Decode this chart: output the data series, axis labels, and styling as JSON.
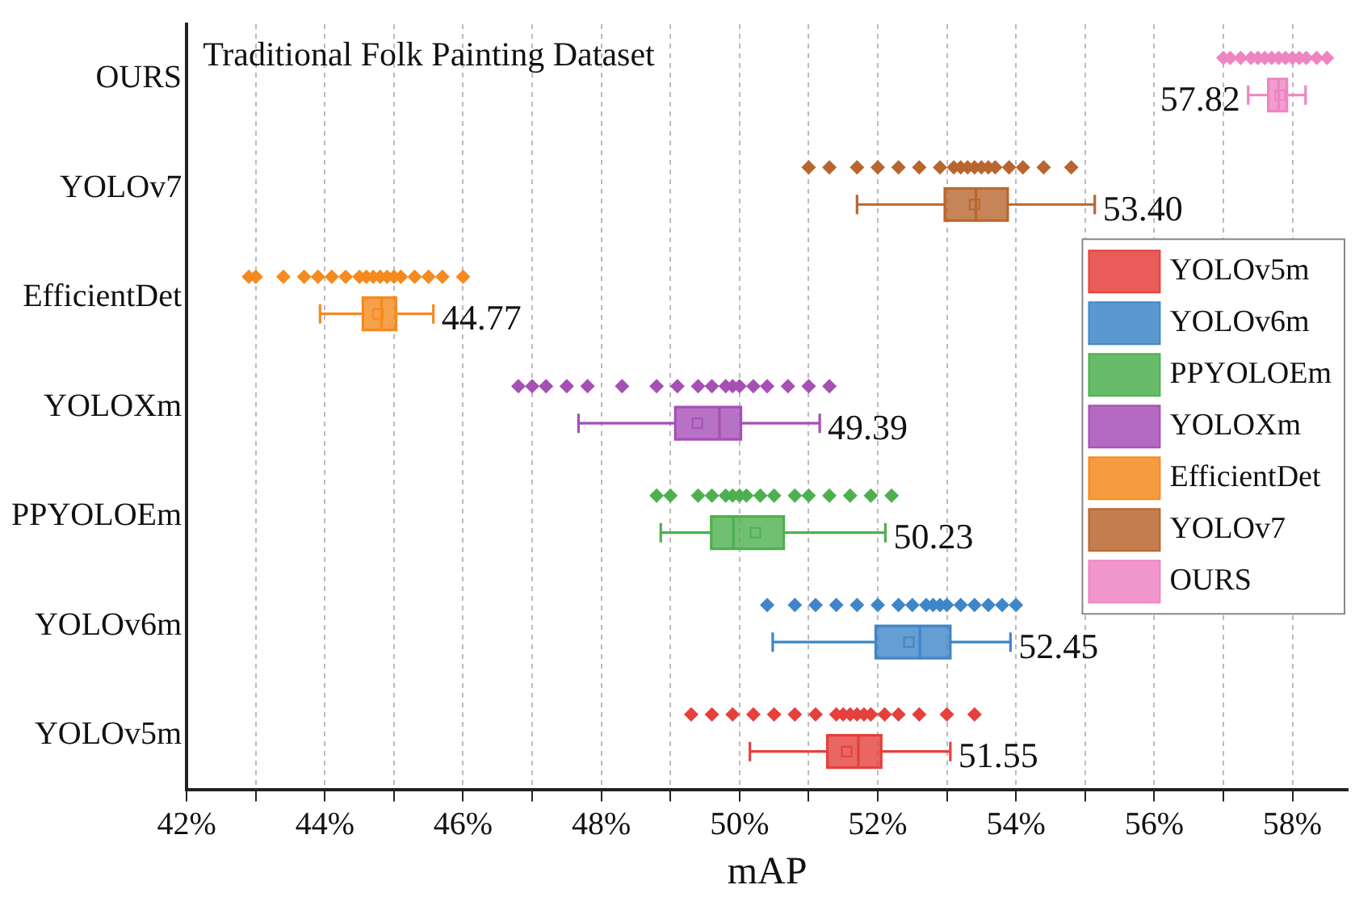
{
  "chart_data": {
    "type": "box",
    "orientation": "horizontal",
    "title": "Traditional Folk Painting Dataset",
    "xlabel": "mAP",
    "categories": [
      "OURS",
      "YOLOv7",
      "EfficientDet",
      "YOLOXm",
      "PPYOLOEm",
      "YOLOv6m",
      "YOLOv5m"
    ],
    "xlim": [
      42,
      58.8
    ],
    "xticks": [
      {
        "value": 42,
        "label": "42%"
      },
      {
        "value": 43,
        "label": null
      },
      {
        "value": 44,
        "label": "44%"
      },
      {
        "value": 45,
        "label": null
      },
      {
        "value": 46,
        "label": "46%"
      },
      {
        "value": 47,
        "label": null
      },
      {
        "value": 48,
        "label": "48%"
      },
      {
        "value": 49,
        "label": null
      },
      {
        "value": 50,
        "label": "50%"
      },
      {
        "value": 51,
        "label": null
      },
      {
        "value": 52,
        "label": "52%"
      },
      {
        "value": 53,
        "label": null
      },
      {
        "value": 54,
        "label": "54%"
      },
      {
        "value": 55,
        "label": null
      },
      {
        "value": 56,
        "label": "56%"
      },
      {
        "value": 57,
        "label": null
      },
      {
        "value": 58,
        "label": "58%"
      }
    ],
    "grid": "x",
    "legend": "right",
    "marker": "diamond",
    "series": [
      {
        "name": "YOLOv5m",
        "color": "#e5403c",
        "boxes": [
          null,
          null,
          null,
          null,
          null,
          null,
          {
            "low": 50.15,
            "q1": 51.27,
            "median": 51.72,
            "q3": 52.05,
            "high": 53.05,
            "mean": 51.55
          }
        ]
      },
      {
        "name": "YOLOv6m",
        "color": "#3f86c8",
        "boxes": [
          null,
          null,
          null,
          null,
          null,
          {
            "low": 50.48,
            "q1": 51.97,
            "median": 52.61,
            "q3": 53.05,
            "high": 53.92,
            "mean": 52.45
          },
          null
        ]
      },
      {
        "name": "PPYOLOEm",
        "color": "#4db04f",
        "boxes": [
          null,
          null,
          null,
          null,
          {
            "low": 48.86,
            "q1": 49.59,
            "median": 49.91,
            "q3": 50.64,
            "high": 52.11,
            "mean": 50.23
          },
          null,
          null
        ]
      },
      {
        "name": "YOLOXm",
        "color": "#a64fb5",
        "boxes": [
          null,
          null,
          null,
          {
            "low": 47.67,
            "q1": 49.07,
            "median": 49.71,
            "q3": 50.02,
            "high": 51.16,
            "mean": 49.39
          },
          null,
          null,
          null
        ]
      },
      {
        "name": "EfficientDet",
        "color": "#f58a1f",
        "boxes": [
          null,
          null,
          {
            "low": 43.93,
            "q1": 44.55,
            "median": 44.82,
            "q3": 45.03,
            "high": 45.57,
            "mean": 44.77
          },
          null,
          null,
          null,
          null
        ]
      },
      {
        "name": "YOLOv7",
        "color": "#b8662f",
        "boxes": [
          null,
          {
            "low": 51.7,
            "q1": 52.97,
            "median": 53.42,
            "q3": 53.88,
            "high": 55.14,
            "mean": 53.4
          },
          null,
          null,
          null,
          null,
          null
        ]
      },
      {
        "name": "OURS",
        "color": "#ef84c3",
        "boxes": [
          {
            "low": 57.36,
            "q1": 57.65,
            "median": 57.8,
            "q3": 57.92,
            "high": 58.19,
            "mean": 57.82
          },
          null,
          null,
          null,
          null,
          null,
          null
        ]
      },
      {
        "type": "scatter",
        "color": "#e5403c",
        "x": [
          "YOLOv5m",
          "YOLOv5m",
          "YOLOv5m",
          "YOLOv5m",
          "YOLOv5m",
          "YOLOv5m",
          "YOLOv5m",
          "YOLOv5m",
          "YOLOv5m",
          "YOLOv5m",
          "YOLOv5m",
          "YOLOv5m",
          "YOLOv5m",
          "YOLOv5m",
          "YOLOv5m",
          "YOLOv5m",
          "YOLOv5m",
          "YOLOv5m"
        ],
        "values": [
          49.3,
          49.6,
          49.9,
          50.2,
          50.5,
          50.8,
          51.1,
          51.4,
          51.5,
          51.6,
          51.7,
          51.8,
          51.9,
          52.1,
          52.3,
          52.6,
          53.0,
          53.4
        ]
      },
      {
        "type": "scatter",
        "color": "#3f86c8",
        "x": [
          "YOLOv6m",
          "YOLOv6m",
          "YOLOv6m",
          "YOLOv6m",
          "YOLOv6m",
          "YOLOv6m",
          "YOLOv6m",
          "YOLOv6m",
          "YOLOv6m",
          "YOLOv6m",
          "YOLOv6m",
          "YOLOv6m",
          "YOLOv6m",
          "YOLOv6m",
          "YOLOv6m",
          "YOLOv6m",
          "YOLOv6m"
        ],
        "values": [
          50.4,
          50.8,
          51.1,
          51.4,
          51.7,
          52.0,
          52.3,
          52.5,
          52.7,
          52.8,
          52.9,
          53.0,
          53.2,
          53.4,
          53.6,
          53.8,
          54.0
        ]
      },
      {
        "type": "scatter",
        "color": "#4db04f",
        "x": [
          "PPYOLOEm",
          "PPYOLOEm",
          "PPYOLOEm",
          "PPYOLOEm",
          "PPYOLOEm",
          "PPYOLOEm",
          "PPYOLOEm",
          "PPYOLOEm",
          "PPYOLOEm",
          "PPYOLOEm",
          "PPYOLOEm",
          "PPYOLOEm",
          "PPYOLOEm",
          "PPYOLOEm",
          "PPYOLOEm",
          "PPYOLOEm"
        ],
        "values": [
          48.8,
          49.0,
          49.4,
          49.6,
          49.8,
          49.9,
          50.0,
          50.1,
          50.3,
          50.5,
          50.8,
          51.0,
          51.3,
          51.6,
          51.9,
          52.2
        ]
      },
      {
        "type": "scatter",
        "color": "#a64fb5",
        "x": [
          "YOLOXm",
          "YOLOXm",
          "YOLOXm",
          "YOLOXm",
          "YOLOXm",
          "YOLOXm",
          "YOLOXm",
          "YOLOXm",
          "YOLOXm",
          "YOLOXm",
          "YOLOXm",
          "YOLOXm",
          "YOLOXm",
          "YOLOXm",
          "YOLOXm",
          "YOLOXm",
          "YOLOXm",
          "YOLOXm"
        ],
        "values": [
          46.8,
          47.0,
          47.2,
          47.5,
          47.8,
          48.3,
          48.8,
          49.1,
          49.4,
          49.6,
          49.8,
          49.9,
          50.0,
          50.2,
          50.4,
          50.7,
          51.0,
          51.3
        ]
      },
      {
        "type": "scatter",
        "color": "#f58a1f",
        "x": [
          "EfficientDet",
          "EfficientDet",
          "EfficientDet",
          "EfficientDet",
          "EfficientDet",
          "EfficientDet",
          "EfficientDet",
          "EfficientDet",
          "EfficientDet",
          "EfficientDet",
          "EfficientDet",
          "EfficientDet",
          "EfficientDet",
          "EfficientDet",
          "EfficientDet",
          "EfficientDet",
          "EfficientDet",
          "EfficientDet"
        ],
        "values": [
          42.9,
          43.0,
          43.4,
          43.7,
          43.9,
          44.1,
          44.3,
          44.5,
          44.6,
          44.7,
          44.8,
          44.9,
          45.0,
          45.1,
          45.3,
          45.5,
          45.7,
          46.0
        ]
      },
      {
        "type": "scatter",
        "color": "#b8662f",
        "x": [
          "YOLOv7",
          "YOLOv7",
          "YOLOv7",
          "YOLOv7",
          "YOLOv7",
          "YOLOv7",
          "YOLOv7",
          "YOLOv7",
          "YOLOv7",
          "YOLOv7",
          "YOLOv7",
          "YOLOv7",
          "YOLOv7",
          "YOLOv7",
          "YOLOv7",
          "YOLOv7",
          "YOLOv7",
          "YOLOv7"
        ],
        "values": [
          51.0,
          51.3,
          51.7,
          52.0,
          52.3,
          52.6,
          52.9,
          53.1,
          53.2,
          53.3,
          53.4,
          53.5,
          53.6,
          53.7,
          53.9,
          54.1,
          54.4,
          54.8
        ]
      },
      {
        "type": "scatter",
        "color": "#ef84c3",
        "x": [
          "OURS",
          "OURS",
          "OURS",
          "OURS",
          "OURS",
          "OURS",
          "OURS",
          "OURS",
          "OURS",
          "OURS",
          "OURS",
          "OURS",
          "OURS",
          "OURS"
        ],
        "values": [
          57.0,
          57.1,
          57.25,
          57.4,
          57.5,
          57.6,
          57.7,
          57.8,
          57.9,
          58.0,
          58.1,
          58.2,
          58.35,
          58.5
        ]
      }
    ],
    "annotations": [
      "57.82",
      "53.40",
      "44.77",
      "49.39",
      "50.23",
      "52.45",
      "51.55"
    ]
  }
}
